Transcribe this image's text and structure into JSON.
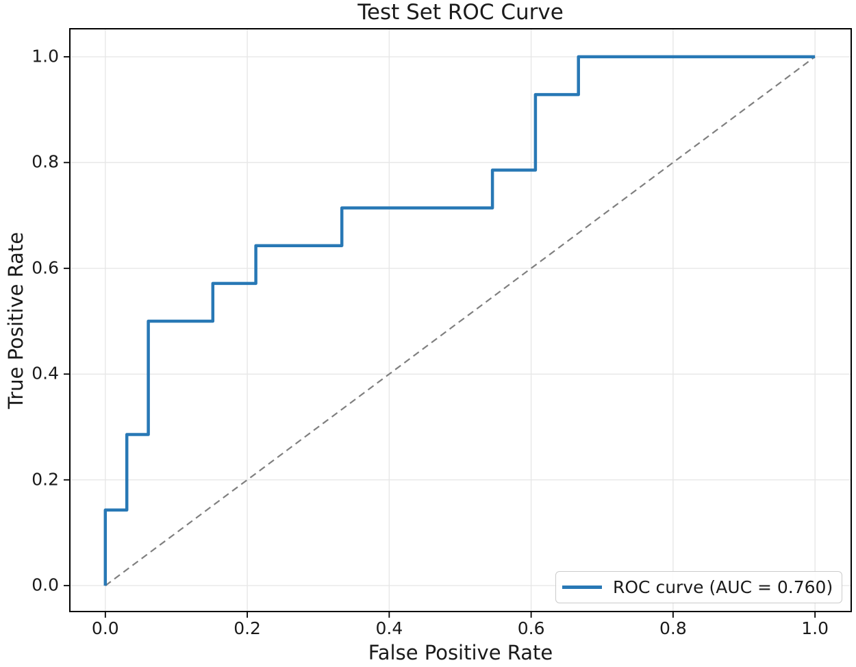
{
  "chart_data": {
    "type": "line",
    "title": "Test Set ROC Curve",
    "xlabel": "False Positive Rate",
    "ylabel": "True Positive Rate",
    "xlim": [
      -0.05,
      1.051
    ],
    "ylim": [
      -0.049,
      1.053
    ],
    "xticks": [
      0.0,
      0.2,
      0.4,
      0.6,
      0.8,
      1.0
    ],
    "xtick_labels": [
      "0.0",
      "0.2",
      "0.4",
      "0.6",
      "0.8",
      "1.0"
    ],
    "yticks": [
      0.0,
      0.2,
      0.4,
      0.6,
      0.8,
      1.0
    ],
    "ytick_labels": [
      "0.0",
      "0.2",
      "0.4",
      "0.6",
      "0.8",
      "1.0"
    ],
    "grid": true,
    "auc": 0.76,
    "colors": {
      "roc_curve": "#2878b5",
      "chance_diagonal": "#7f7f7f",
      "grid": "#e7e7e7",
      "spine": "#000000",
      "text": "#1a1a1a"
    },
    "legend": {
      "position": "lower right",
      "entries": [
        {
          "label": "ROC curve (AUC = 0.760)",
          "color": "#2878b5"
        }
      ]
    },
    "series": [
      {
        "id": "roc-curve",
        "name": "ROC curve (AUC = 0.760)",
        "style": "step",
        "color": "#2878b5",
        "linewidth": 4.5,
        "x": [
          0.0,
          0.0,
          0.0303,
          0.0303,
          0.0606,
          0.0606,
          0.1515,
          0.1515,
          0.2121,
          0.2121,
          0.3333,
          0.3333,
          0.5455,
          0.5455,
          0.6061,
          0.6061,
          0.6667,
          0.6667,
          1.0
        ],
        "y": [
          0.0,
          0.1429,
          0.1429,
          0.2857,
          0.2857,
          0.5,
          0.5,
          0.5714,
          0.5714,
          0.6429,
          0.6429,
          0.7143,
          0.7143,
          0.7857,
          0.7857,
          0.9286,
          0.9286,
          1.0,
          1.0
        ]
      },
      {
        "id": "chance-diagonal",
        "name": "chance-diagonal",
        "style": "dashed",
        "color": "#7f7f7f",
        "linewidth": 2.2,
        "dash": "10 6.5",
        "x": [
          0.0,
          1.0
        ],
        "y": [
          0.0,
          1.0
        ]
      }
    ]
  }
}
